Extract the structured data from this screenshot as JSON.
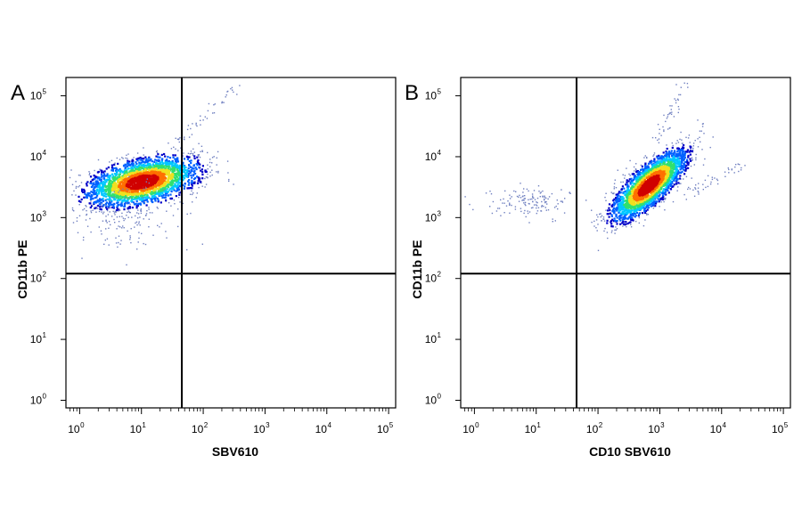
{
  "chart_data": [
    {
      "type": "scatter",
      "panel_label": "A",
      "xlabel": "SBV610",
      "ylabel": "CD11b PE",
      "x_scale": "log",
      "y_scale": "log",
      "xlim": [
        0.6,
        130000
      ],
      "ylim": [
        0.75,
        200000
      ],
      "x_tick_labels": [
        "10^0",
        "10^1",
        "10^2",
        "10^3",
        "10^4",
        "10^5"
      ],
      "y_tick_labels": [
        "10^0",
        "10^1",
        "10^2",
        "10^3",
        "10^4",
        "10^5"
      ],
      "quadrant_gate": {
        "x": 45,
        "y": 120
      },
      "grid": false,
      "legend": "none",
      "density_colormap": [
        "#0000c8",
        "#0060ff",
        "#00c8ff",
        "#30e070",
        "#f0e020",
        "#ff7000",
        "#d00000"
      ],
      "populations": [
        {
          "label": "main",
          "x_center": 10,
          "y_center": 4000,
          "x_spread_decades": 0.45,
          "y_spread_decades": 0.18,
          "tilt": 0.2
        },
        {
          "label": "sparse",
          "x_center": 5,
          "y_center": 900,
          "x_spread_decades": 0.45,
          "y_spread_decades": 0.3,
          "tilt": 0.0
        },
        {
          "label": "diagonal-tail",
          "x_range": [
            30,
            450
          ],
          "y_range": [
            15000,
            170000
          ]
        }
      ]
    },
    {
      "type": "scatter",
      "panel_label": "B",
      "xlabel": "CD10 SBV610",
      "ylabel": "CD11b PE",
      "x_scale": "log",
      "y_scale": "log",
      "xlim": [
        0.6,
        130000
      ],
      "ylim": [
        0.75,
        200000
      ],
      "x_tick_labels": [
        "10^0",
        "10^1",
        "10^2",
        "10^3",
        "10^4",
        "10^5"
      ],
      "y_tick_labels": [
        "10^0",
        "10^1",
        "10^2",
        "10^3",
        "10^4",
        "10^5"
      ],
      "quadrant_gate": {
        "x": 45,
        "y": 120
      },
      "grid": false,
      "legend": "none",
      "density_colormap": [
        "#0000c8",
        "#0060ff",
        "#00c8ff",
        "#30e070",
        "#f0e020",
        "#ff7000",
        "#d00000"
      ],
      "populations": [
        {
          "label": "main",
          "x_center": 650,
          "y_center": 3500,
          "x_spread_decades": 0.3,
          "y_spread_decades": 0.18,
          "tilt": 0.75
        },
        {
          "label": "left-cluster",
          "x_center": 8,
          "y_center": 1800,
          "x_spread_decades": 0.35,
          "y_spread_decades": 0.12,
          "tilt": 0.0
        },
        {
          "label": "upper-tail",
          "x_range": [
            800,
            2500
          ],
          "y_range": [
            15000,
            180000
          ]
        },
        {
          "label": "right-tail",
          "x_range": [
            2500,
            20000
          ],
          "y_range": [
            2500,
            7000
          ]
        }
      ]
    }
  ]
}
